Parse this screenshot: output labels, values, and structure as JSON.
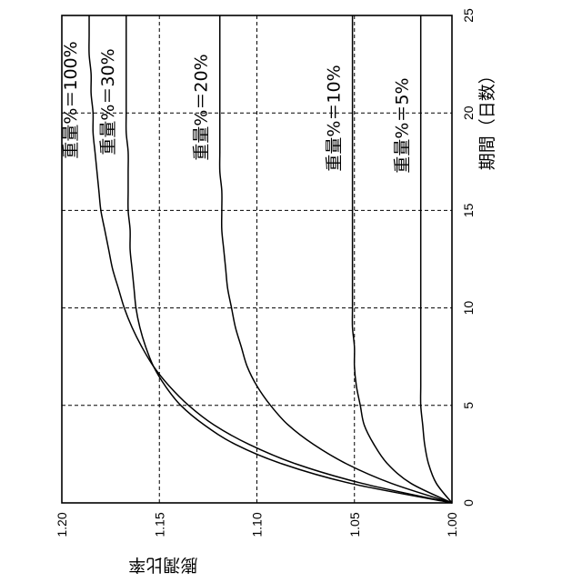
{
  "chart_data": {
    "type": "line",
    "orientation": "rotated-90-cw",
    "xlabel": "期間（日数）",
    "ylabel": "膨潤比率",
    "xlim": [
      0,
      25
    ],
    "ylim": [
      1.0,
      1.2
    ],
    "xticks": [
      "0",
      "5",
      "10",
      "15",
      "20",
      "25"
    ],
    "yticks": [
      "1.00",
      "1.05",
      "1.10",
      "1.15",
      "1.20"
    ],
    "grid": true,
    "x": [
      0,
      1,
      2,
      3,
      4,
      5,
      6,
      7,
      8,
      9,
      10,
      11,
      12,
      13,
      14,
      15,
      16,
      17,
      18,
      19,
      20,
      21,
      22,
      23,
      24,
      25
    ],
    "series": [
      {
        "name": "重量%＝100%",
        "values": [
          1.0,
          1.046,
          1.08,
          1.104,
          1.122,
          1.135,
          1.145,
          1.153,
          1.159,
          1.164,
          1.168,
          1.171,
          1.174,
          1.176,
          1.178,
          1.18,
          1.181,
          1.182,
          1.183,
          1.184,
          1.184,
          1.185,
          1.185,
          1.186,
          1.186,
          1.186
        ]
      },
      {
        "name": "重量%＝30%",
        "values": [
          1.0,
          1.052,
          1.087,
          1.111,
          1.127,
          1.139,
          1.147,
          1.153,
          1.157,
          1.16,
          1.162,
          1.163,
          1.164,
          1.165,
          1.165,
          1.166,
          1.166,
          1.166,
          1.166,
          1.167,
          1.167,
          1.167,
          1.167,
          1.167,
          1.167,
          1.167
        ]
      },
      {
        "name": "重量%＝20%",
        "values": [
          1.0,
          1.031,
          1.054,
          1.071,
          1.084,
          1.093,
          1.1,
          1.105,
          1.108,
          1.111,
          1.113,
          1.115,
          1.116,
          1.117,
          1.118,
          1.118,
          1.118,
          1.119,
          1.119,
          1.119,
          1.119,
          1.119,
          1.119,
          1.119,
          1.119,
          1.119
        ]
      },
      {
        "name": "重量%＝10%",
        "values": [
          1.0,
          1.021,
          1.033,
          1.04,
          1.045,
          1.047,
          1.049,
          1.05,
          1.05,
          1.051,
          1.051,
          1.051,
          1.051,
          1.051,
          1.051,
          1.051,
          1.051,
          1.051,
          1.051,
          1.051,
          1.051,
          1.051,
          1.051,
          1.051,
          1.051,
          1.051
        ]
      },
      {
        "name": "重量%＝5%",
        "values": [
          1.0,
          1.008,
          1.012,
          1.014,
          1.015,
          1.016,
          1.016,
          1.016,
          1.016,
          1.016,
          1.016,
          1.016,
          1.016,
          1.016,
          1.016,
          1.016,
          1.016,
          1.016,
          1.016,
          1.016,
          1.016,
          1.016,
          1.016,
          1.016,
          1.016,
          1.016
        ]
      }
    ]
  }
}
